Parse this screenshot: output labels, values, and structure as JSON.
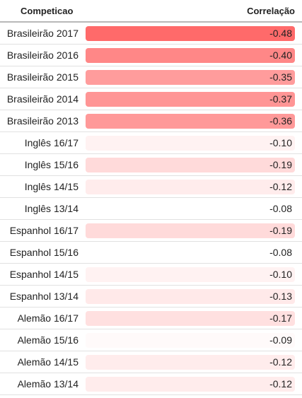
{
  "header": {
    "competition_label": "Competicao",
    "correlation_label": "Correlação"
  },
  "rows": [
    {
      "name": "Brasileirão 2017",
      "value": "-0.48",
      "color": "#ff6a6a"
    },
    {
      "name": "Brasileirão 2016",
      "value": "-0.40",
      "color": "#ff8787"
    },
    {
      "name": "Brasileirão 2015",
      "value": "-0.35",
      "color": "#ff9c9c"
    },
    {
      "name": "Brasileirão 2014",
      "value": "-0.37",
      "color": "#ff9595"
    },
    {
      "name": "Brasileirão 2013",
      "value": "-0.36",
      "color": "#ff9999"
    },
    {
      "name": "Inglês 16/17",
      "value": "-0.10",
      "color": "#fff2f2"
    },
    {
      "name": "Inglês 15/16",
      "value": "-0.19",
      "color": "#ffdada"
    },
    {
      "name": "Inglês 14/15",
      "value": "-0.12",
      "color": "#ffecec"
    },
    {
      "name": "Inglês 13/14",
      "value": "-0.08",
      "color": "#ffffff"
    },
    {
      "name": "Espanhol 16/17",
      "value": "-0.19",
      "color": "#ffdada"
    },
    {
      "name": "Espanhol 15/16",
      "value": "-0.08",
      "color": "#ffffff"
    },
    {
      "name": "Espanhol 14/15",
      "value": "-0.10",
      "color": "#fff2f2"
    },
    {
      "name": "Espanhol 13/14",
      "value": "-0.13",
      "color": "#ffe9e9"
    },
    {
      "name": "Alemão 16/17",
      "value": "-0.17",
      "color": "#ffe0e0"
    },
    {
      "name": "Alemão 15/16",
      "value": "-0.09",
      "color": "#fffafa"
    },
    {
      "name": "Alemão 14/15",
      "value": "-0.12",
      "color": "#ffecec"
    },
    {
      "name": "Alemão 13/14",
      "value": "-0.12",
      "color": "#ffecec"
    }
  ]
}
